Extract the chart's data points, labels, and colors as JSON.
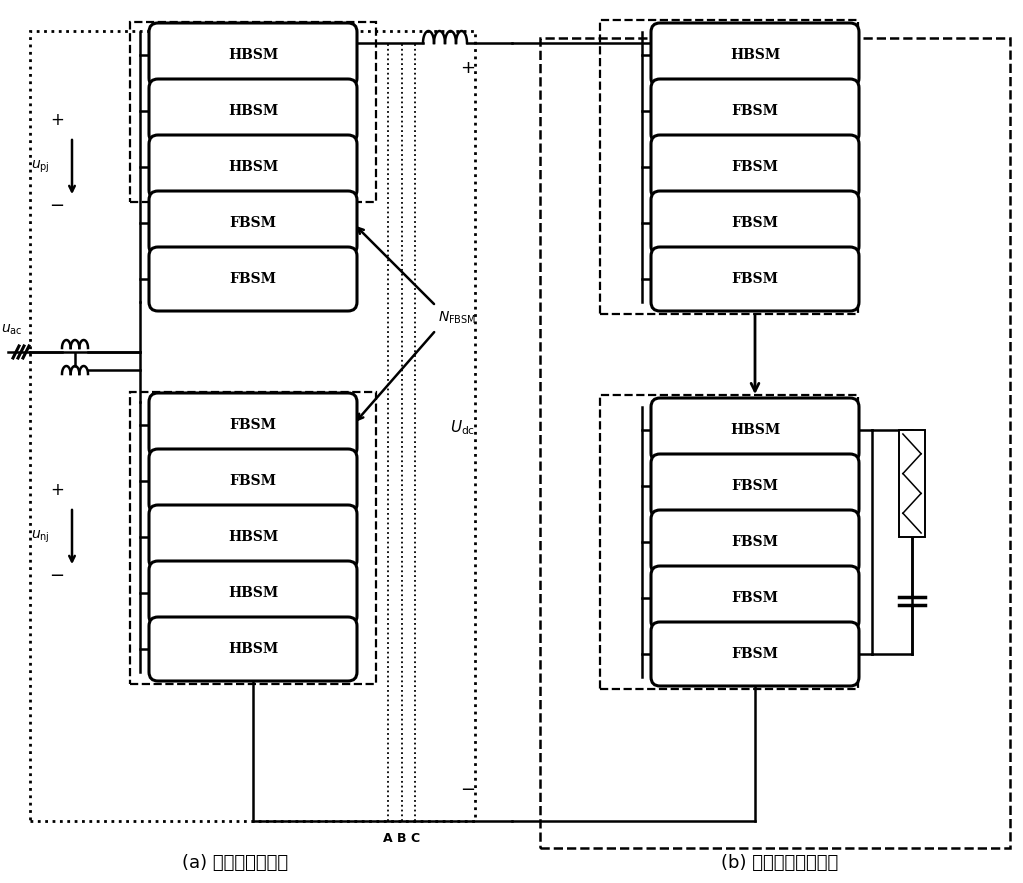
{
  "fig_width": 10.23,
  "fig_height": 8.83,
  "caption_a": "(a) 半全混合换流器",
  "caption_b": "(b) 全桥阀段拓扑改造",
  "top_arm_labels": [
    "HBSM",
    "HBSM",
    "HBSM",
    "FBSM",
    "FBSM"
  ],
  "bot_arm_labels": [
    "FBSM",
    "FBSM",
    "HBSM",
    "HBSM",
    "HBSM"
  ],
  "top_b_labels": [
    "HBSM",
    "FBSM",
    "FBSM",
    "FBSM",
    "FBSM"
  ],
  "bot_b_labels": [
    "HBSM",
    "FBSM",
    "FBSM",
    "FBSM",
    "FBSM"
  ]
}
